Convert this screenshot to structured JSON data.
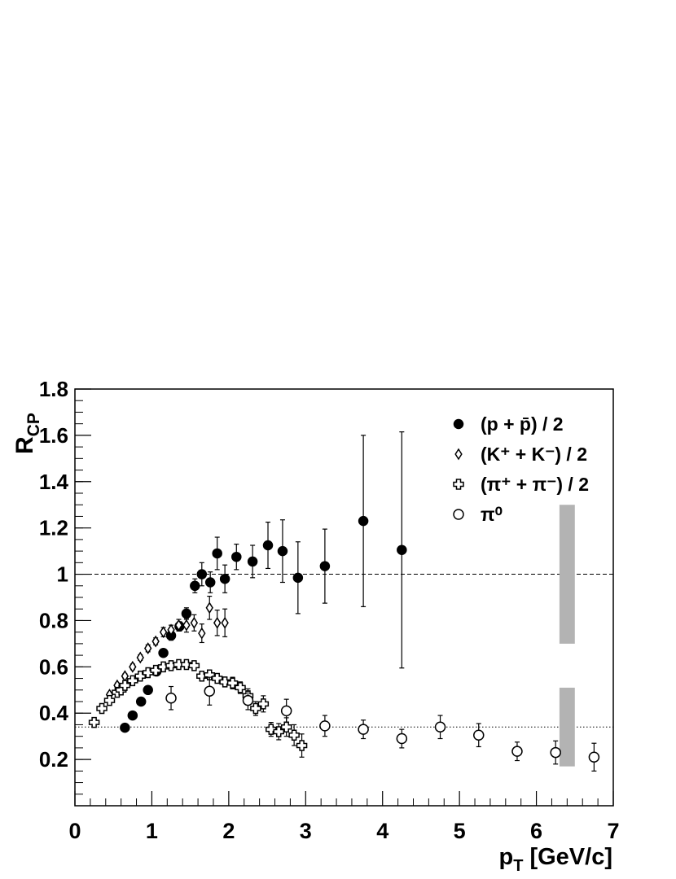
{
  "chart_data": {
    "type": "scatter",
    "xlabel": "p",
    "xlabel_sub": "T",
    "xlabel_rest": " [GeV/c]",
    "ylabel": "R",
    "ylabel_sub": "CP",
    "xlim": [
      0,
      7
    ],
    "ylim": [
      0,
      1.8
    ],
    "xticks": [
      0,
      1,
      2,
      3,
      4,
      5,
      6,
      7
    ],
    "yticks": [
      0.2,
      0.4,
      0.6,
      0.8,
      1,
      1.2,
      1.4,
      1.6,
      1.8
    ],
    "hlines": [
      {
        "y": 1,
        "style": "dashed"
      },
      {
        "y": 0.34,
        "style": "dotted"
      }
    ],
    "bands": [
      {
        "x": [
          6.3,
          6.5
        ],
        "y": [
          0.7,
          1.3
        ],
        "color": "#b3b3b3"
      },
      {
        "x": [
          6.3,
          6.5
        ],
        "y": [
          0.17,
          0.51
        ],
        "color": "#b3b3b3"
      }
    ],
    "series": [
      {
        "name": "(p + p̄) / 2",
        "marker": "filled-circle",
        "color": "#000000",
        "x": [
          0.65,
          0.75,
          0.86,
          0.95,
          1.06,
          1.15,
          1.25,
          1.36,
          1.45,
          1.56,
          1.65,
          1.76,
          1.85,
          1.95,
          2.1,
          2.31,
          2.51,
          2.7,
          2.9,
          3.25,
          3.75,
          4.25
        ],
        "values": [
          0.337,
          0.39,
          0.45,
          0.5,
          0.58,
          0.66,
          0.735,
          0.775,
          0.83,
          0.95,
          1.0,
          0.965,
          1.09,
          0.98,
          1.075,
          1.055,
          1.125,
          1.1,
          0.985,
          1.035,
          1.23,
          1.105
        ],
        "errors": [
          0.01,
          0.01,
          0.01,
          0.01,
          0.015,
          0.015,
          0.02,
          0.02,
          0.025,
          0.03,
          0.05,
          0.045,
          0.07,
          0.06,
          0.055,
          0.07,
          0.1,
          0.135,
          0.155,
          0.16,
          0.37,
          0.51
        ]
      },
      {
        "name": "(K⁺ + K⁻) / 2",
        "marker": "open-diamond",
        "color": "#000000",
        "x": [
          0.45,
          0.55,
          0.65,
          0.75,
          0.85,
          0.95,
          1.05,
          1.15,
          1.25,
          1.35,
          1.45,
          1.55,
          1.65,
          1.75,
          1.85,
          1.95
        ],
        "values": [
          0.48,
          0.52,
          0.56,
          0.6,
          0.64,
          0.68,
          0.71,
          0.75,
          0.76,
          0.78,
          0.78,
          0.79,
          0.745,
          0.855,
          0.79,
          0.79
        ],
        "errors": [
          0.01,
          0.01,
          0.01,
          0.012,
          0.012,
          0.015,
          0.015,
          0.02,
          0.02,
          0.025,
          0.03,
          0.035,
          0.04,
          0.05,
          0.055,
          0.06
        ]
      },
      {
        "name": "(π⁺ + π⁻) / 2",
        "marker": "open-cross",
        "color": "#000000",
        "x": [
          0.25,
          0.35,
          0.45,
          0.55,
          0.6,
          0.65,
          0.75,
          0.85,
          0.95,
          1.05,
          1.15,
          1.25,
          1.35,
          1.45,
          1.55,
          1.65,
          1.75,
          1.85,
          1.95,
          2.05,
          2.15,
          2.25,
          2.35,
          2.45,
          2.55,
          2.65,
          2.75,
          2.85,
          2.95
        ],
        "values": [
          0.36,
          0.42,
          0.455,
          0.49,
          0.5,
          0.52,
          0.54,
          0.56,
          0.575,
          0.585,
          0.6,
          0.605,
          0.61,
          0.61,
          0.605,
          0.56,
          0.565,
          0.55,
          0.535,
          0.53,
          0.51,
          0.475,
          0.42,
          0.44,
          0.33,
          0.32,
          0.34,
          0.305,
          0.26
        ],
        "errors": [
          0.01,
          0.01,
          0.01,
          0.01,
          0.01,
          0.01,
          0.01,
          0.01,
          0.01,
          0.01,
          0.012,
          0.012,
          0.012,
          0.015,
          0.015,
          0.015,
          0.018,
          0.02,
          0.02,
          0.025,
          0.025,
          0.03,
          0.03,
          0.035,
          0.03,
          0.035,
          0.04,
          0.045,
          0.05
        ]
      },
      {
        "name": "π⁰",
        "marker": "open-circle",
        "color": "#000000",
        "x": [
          1.25,
          1.75,
          2.25,
          2.75,
          3.25,
          3.75,
          4.25,
          4.75,
          5.25,
          5.75,
          6.25,
          6.75
        ],
        "values": [
          0.465,
          0.495,
          0.455,
          0.41,
          0.345,
          0.33,
          0.29,
          0.34,
          0.305,
          0.235,
          0.23,
          0.21
        ],
        "errors": [
          0.05,
          0.06,
          0.04,
          0.05,
          0.045,
          0.04,
          0.04,
          0.05,
          0.05,
          0.04,
          0.05,
          0.06
        ]
      }
    ]
  }
}
